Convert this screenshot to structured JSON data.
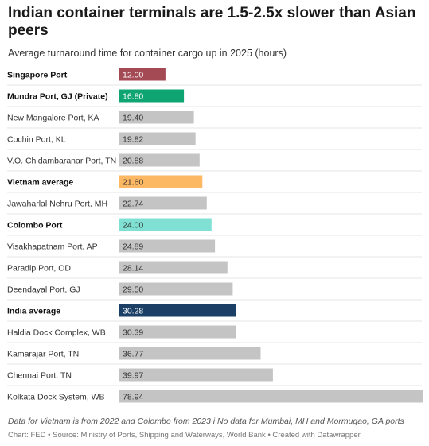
{
  "title": "Indian container terminals are 1.5-2.5x slower than Asian peers",
  "subtitle": "Average turnaround time for container cargo up in 2025 (hours)",
  "note": "Data for Vietnam is from 2022 and Colombo from 2023 i No data for Mumbai, MH and Mormugao, GA ports",
  "credit": "Chart: FED • Source: Ministry of Ports, Shipping and Waterways, World Bank • Created with Datawrapper",
  "chart_data": {
    "type": "bar",
    "orientation": "horizontal",
    "xlim": [
      0,
      78.94
    ],
    "categories": [
      "Singapore Port",
      "Mundra Port, GJ (Private)",
      "New Mangalore Port, KA",
      "Cochin Port, KL",
      "V.O. Chidambaranar Port, TN",
      "Vietnam average",
      "Jawaharlal Nehru Port, MH",
      "Colombo Port",
      "Visakhapatnam Port, AP",
      "Paradip Port, OD",
      "Deendayal Port, GJ",
      "India average",
      "Haldia Dock Complex, WB",
      "Kamarajar Port, TN",
      "Chennai Port, TN",
      "Kolkata Dock System, WB"
    ],
    "values": [
      12.0,
      16.8,
      19.4,
      19.82,
      20.88,
      21.6,
      22.74,
      24.0,
      24.89,
      28.14,
      29.5,
      30.28,
      30.39,
      36.77,
      39.97,
      78.94
    ],
    "value_labels": [
      "12.00",
      "16.80",
      "19.40",
      "19.82",
      "20.88",
      "21.60",
      "22.74",
      "24.00",
      "24.89",
      "28.14",
      "29.50",
      "30.28",
      "30.39",
      "36.77",
      "39.97",
      "78.94"
    ],
    "highlighted": [
      true,
      true,
      false,
      false,
      false,
      true,
      false,
      true,
      false,
      false,
      false,
      true,
      false,
      false,
      false,
      false
    ],
    "colors": [
      "#a34a55",
      "#0fa572",
      "#c4c4c4",
      "#c4c4c4",
      "#c4c4c4",
      "#fdb863",
      "#c4c4c4",
      "#7fe0d3",
      "#c4c4c4",
      "#c4c4c4",
      "#c4c4c4",
      "#1c3f66",
      "#c4c4c4",
      "#c4c4c4",
      "#c4c4c4",
      "#c4c4c4"
    ],
    "label_colors": [
      "#ffffff",
      "#ffffff",
      "#333333",
      "#333333",
      "#333333",
      "#333333",
      "#333333",
      "#333333",
      "#333333",
      "#333333",
      "#333333",
      "#ffffff",
      "#333333",
      "#333333",
      "#333333",
      "#333333"
    ]
  }
}
